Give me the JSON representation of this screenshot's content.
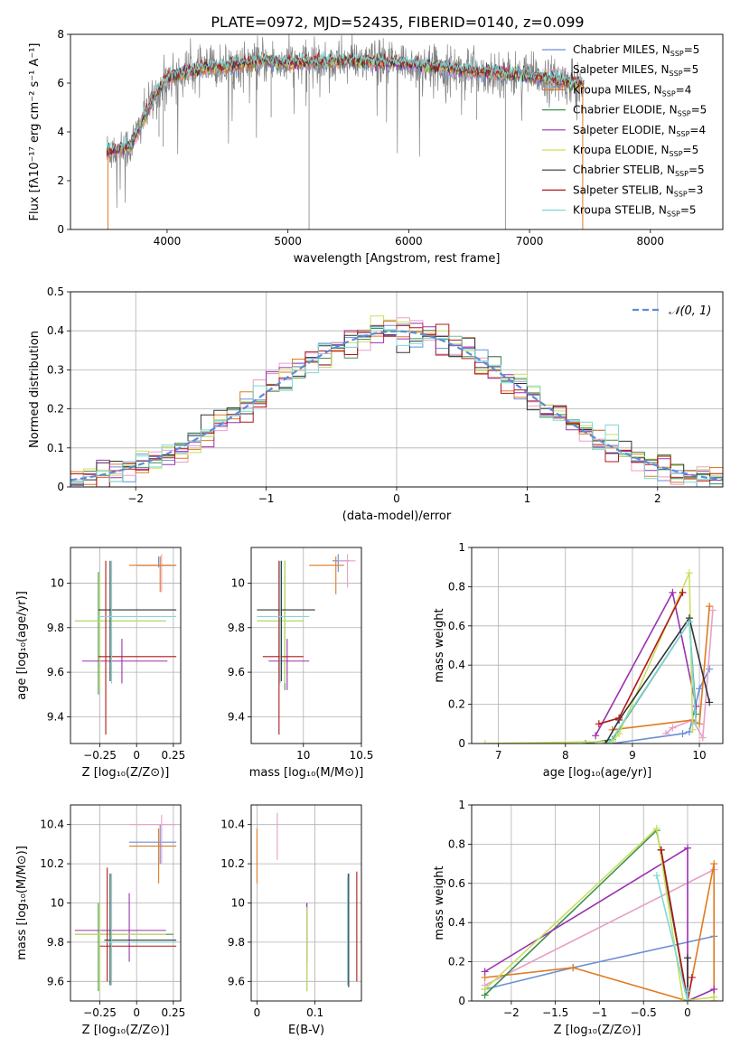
{
  "figure": {
    "title": "PLATE=0972, MJD=52435, FIBERID=0140, z=0.099"
  },
  "models": [
    {
      "label": "Chabrier MILES, N",
      "nssp": "=5",
      "color": "#6a8fd8"
    },
    {
      "label": "Salpeter MILES, N",
      "nssp": "=5",
      "color": "#e8a0c8"
    },
    {
      "label": "Kroupa MILES, N",
      "nssp": "=4",
      "color": "#e07a20"
    },
    {
      "label": "Chabrier ELODIE, N",
      "nssp": "=5",
      "color": "#3f8f4f"
    },
    {
      "label": "Salpeter ELODIE, N",
      "nssp": "=4",
      "color": "#9b30b0"
    },
    {
      "label": "Kroupa ELODIE, N",
      "nssp": "=5",
      "color": "#c8e060"
    },
    {
      "label": "Chabrier STELIB, N",
      "nssp": "=5",
      "color": "#333333"
    },
    {
      "label": "Salpeter STELIB, N",
      "nssp": "=3",
      "color": "#b01818"
    },
    {
      "label": "Kroupa STELIB, N",
      "nssp": "=5",
      "color": "#7fd8d8"
    }
  ],
  "chart_data": [
    {
      "id": "spectrum",
      "type": "line",
      "xlabel": "wavelength [Angstrom, rest frame]",
      "ylabel": "Flux [fλ10⁻¹⁷ erg cm⁻² s⁻¹ A⁻¹]",
      "xlim": [
        3200,
        8600
      ],
      "ylim": [
        0,
        8
      ],
      "xticks": [
        4000,
        5000,
        6000,
        7000,
        8000
      ],
      "yticks": [
        0,
        2,
        4,
        6,
        8
      ],
      "data_range": [
        3500,
        7450
      ],
      "continuum": {
        "x": [
          3500,
          3700,
          3800,
          3900,
          4000,
          4200,
          4500,
          4800,
          5000,
          5500,
          6000,
          6500,
          7000,
          7400
        ],
        "y": [
          3.2,
          3.4,
          4.5,
          5.5,
          6.2,
          6.5,
          6.7,
          6.9,
          6.8,
          6.9,
          6.8,
          6.5,
          6.3,
          6.0
        ]
      },
      "legend_suffix": "SSP",
      "legend_position": "upper right"
    },
    {
      "id": "residuals",
      "type": "step",
      "xlabel": "(data-model)/error",
      "ylabel": "Normed distribution",
      "xlim": [
        -2.5,
        2.5
      ],
      "ylim": [
        0,
        0.5
      ],
      "xticks": [
        -2,
        -1,
        0,
        1,
        2
      ],
      "yticks": [
        0,
        0.1,
        0.2,
        0.3,
        0.4,
        0.5
      ],
      "grid": true,
      "legend": [
        {
          "label": "𝒩(0, 1)",
          "style": "dashed",
          "color": "#5b8bd8"
        }
      ],
      "bin_width": 0.1
    },
    {
      "id": "age-vs-Z",
      "type": "errorbar",
      "xlabel": "Z [log₁₀(Z/Z⊙)]",
      "ylabel": "age  [log₁₀(age/yr)]",
      "xlim": [
        -0.45,
        0.3
      ],
      "ylim": [
        9.28,
        10.16
      ],
      "xticks": [
        -0.25,
        0.0,
        0.25
      ],
      "yticks": [
        9.4,
        9.6,
        9.8,
        10.0
      ],
      "grid": true,
      "points": [
        {
          "m": 0,
          "x": 0.15,
          "xe": [
            0.0,
            0.25
          ],
          "y": 10.08,
          "ye": [
            10.07,
            10.12
          ]
        },
        {
          "m": 1,
          "x": 0.17,
          "xe": [
            0.0,
            0.27
          ],
          "y": 10.08,
          "ye": [
            9.96,
            10.13
          ]
        },
        {
          "m": 2,
          "x": 0.16,
          "xe": [
            -0.05,
            0.27
          ],
          "y": 10.08,
          "ye": [
            9.96,
            10.12
          ]
        },
        {
          "m": 3,
          "x": -0.26,
          "xe": [
            -0.42,
            0.2
          ],
          "y": 9.83,
          "ye": [
            9.5,
            10.05
          ]
        },
        {
          "m": 4,
          "x": -0.1,
          "xe": [
            -0.37,
            0.21
          ],
          "y": 9.65,
          "ye": [
            9.55,
            9.75
          ]
        },
        {
          "m": 5,
          "x": -0.25,
          "xe": [
            -0.42,
            0.2
          ],
          "y": 9.83,
          "ye": [
            9.52,
            10.05
          ]
        },
        {
          "m": 6,
          "x": -0.18,
          "xe": [
            -0.26,
            0.27
          ],
          "y": 9.88,
          "ye": [
            9.56,
            10.1
          ]
        },
        {
          "m": 7,
          "x": -0.21,
          "xe": [
            -0.26,
            0.27
          ],
          "y": 9.67,
          "ye": [
            9.32,
            10.1
          ]
        },
        {
          "m": 8,
          "x": -0.17,
          "xe": [
            -0.26,
            0.27
          ],
          "y": 9.85,
          "ye": [
            9.55,
            10.1
          ]
        }
      ]
    },
    {
      "id": "age-vs-mass",
      "type": "errorbar",
      "xlabel": "mass [log₁₀(M/M⊙)]",
      "ylabel": "",
      "xlim": [
        9.55,
        10.5
      ],
      "ylim": [
        9.28,
        10.16
      ],
      "xticks": [
        10.0,
        10.5
      ],
      "yticks": [
        9.4,
        9.6,
        9.8,
        10.0
      ],
      "grid": true,
      "points": [
        {
          "m": 0,
          "x": 10.3,
          "xe": [
            10.25,
            10.4
          ],
          "y": 10.1,
          "ye": [
            10.05,
            10.13
          ]
        },
        {
          "m": 1,
          "x": 10.38,
          "xe": [
            10.3,
            10.45
          ],
          "y": 10.1,
          "ye": [
            9.98,
            10.13
          ]
        },
        {
          "m": 2,
          "x": 10.28,
          "xe": [
            10.05,
            10.35
          ],
          "y": 10.08,
          "ye": [
            9.95,
            10.12
          ]
        },
        {
          "m": 3,
          "x": 9.84,
          "xe": [
            9.6,
            10.0
          ],
          "y": 9.83,
          "ye": [
            9.52,
            10.1
          ]
        },
        {
          "m": 4,
          "x": 9.86,
          "xe": [
            9.7,
            10.05
          ],
          "y": 9.65,
          "ye": [
            9.52,
            9.75
          ]
        },
        {
          "m": 5,
          "x": 9.84,
          "xe": [
            9.6,
            10.0
          ],
          "y": 9.83,
          "ye": [
            9.55,
            10.1
          ]
        },
        {
          "m": 6,
          "x": 9.81,
          "xe": [
            9.6,
            10.1
          ],
          "y": 9.88,
          "ye": [
            9.56,
            10.1
          ]
        },
        {
          "m": 7,
          "x": 9.79,
          "xe": [
            9.65,
            10.0
          ],
          "y": 9.67,
          "ye": [
            9.32,
            10.1
          ]
        },
        {
          "m": 8,
          "x": 9.8,
          "xe": [
            9.6,
            10.05
          ],
          "y": 9.85,
          "ye": [
            9.55,
            10.1
          ]
        }
      ]
    },
    {
      "id": "weight-vs-age",
      "type": "line",
      "xlabel": "age  [log₁₀(age/yr)]",
      "ylabel": "mass weight",
      "xlim": [
        6.6,
        10.35
      ],
      "ylim": [
        0,
        1.0
      ],
      "xticks": [
        7,
        8,
        9,
        10
      ],
      "yticks": [
        0.0,
        0.2,
        0.4,
        0.6,
        0.8,
        1.0
      ],
      "grid": true,
      "series": [
        {
          "m": 0,
          "x": [
            8.7,
            9.75,
            9.85,
            10.0,
            10.15
          ],
          "y": [
            0.0,
            0.05,
            0.06,
            0.28,
            0.38
          ]
        },
        {
          "m": 1,
          "x": [
            9.5,
            9.6,
            9.9,
            10.05,
            10.2
          ],
          "y": [
            0.05,
            0.08,
            0.12,
            0.03,
            0.68
          ]
        },
        {
          "m": 2,
          "x": [
            8.7,
            9.9,
            10.0,
            10.15
          ],
          "y": [
            0.07,
            0.12,
            0.1,
            0.7
          ]
        },
        {
          "m": 3,
          "x": [
            8.3,
            8.7,
            9.85,
            9.95
          ],
          "y": [
            0.0,
            0.02,
            0.62,
            0.15
          ]
        },
        {
          "m": 4,
          "x": [
            8.45,
            9.6,
            9.95
          ],
          "y": [
            0.04,
            0.77,
            0.19
          ]
        },
        {
          "m": 5,
          "x": [
            6.8,
            8.7,
            8.8,
            9.85,
            9.9
          ],
          "y": [
            0.0,
            0.01,
            0.05,
            0.87,
            0.07
          ]
        },
        {
          "m": 6,
          "x": [
            8.6,
            8.8,
            9.85,
            10.15
          ],
          "y": [
            0.0,
            0.12,
            0.64,
            0.21
          ]
        },
        {
          "m": 7,
          "x": [
            8.5,
            8.8,
            9.75
          ],
          "y": [
            0.1,
            0.13,
            0.77
          ]
        },
        {
          "m": 8,
          "x": [
            8.65,
            9.85,
            9.95
          ],
          "y": [
            0.0,
            0.62,
            0.1
          ]
        }
      ]
    },
    {
      "id": "mass-vs-Z",
      "type": "errorbar",
      "xlabel": "Z [log₁₀(Z/Z⊙)]",
      "ylabel": "mass [log₁₀(M/M⊙)]",
      "xlim": [
        -0.45,
        0.3
      ],
      "ylim": [
        9.5,
        10.5
      ],
      "xticks": [
        -0.25,
        0.0,
        0.25
      ],
      "yticks": [
        9.6,
        9.8,
        10.0,
        10.2,
        10.4
      ],
      "grid": true,
      "points": [
        {
          "m": 0,
          "x": 0.16,
          "xe": [
            -0.05,
            0.27
          ],
          "y": 10.31,
          "ye": [
            10.2,
            10.4
          ]
        },
        {
          "m": 1,
          "x": 0.17,
          "xe": [
            -0.05,
            0.27
          ],
          "y": 10.4,
          "ye": [
            10.2,
            10.45
          ]
        },
        {
          "m": 2,
          "x": 0.15,
          "xe": [
            -0.05,
            0.27
          ],
          "y": 10.29,
          "ye": [
            10.1,
            10.38
          ]
        },
        {
          "m": 3,
          "x": -0.26,
          "xe": [
            -0.42,
            0.25
          ],
          "y": 9.84,
          "ye": [
            9.55,
            10.0
          ]
        },
        {
          "m": 4,
          "x": -0.05,
          "xe": [
            -0.42,
            0.2
          ],
          "y": 9.86,
          "ye": [
            9.7,
            10.05
          ]
        },
        {
          "m": 5,
          "x": -0.25,
          "xe": [
            -0.42,
            0.2
          ],
          "y": 9.84,
          "ye": [
            9.55,
            10.0
          ]
        },
        {
          "m": 6,
          "x": -0.18,
          "xe": [
            -0.22,
            0.27
          ],
          "y": 9.81,
          "ye": [
            9.58,
            10.15
          ]
        },
        {
          "m": 7,
          "x": -0.2,
          "xe": [
            -0.25,
            0.27
          ],
          "y": 9.78,
          "ye": [
            9.6,
            10.18
          ]
        },
        {
          "m": 8,
          "x": -0.17,
          "xe": [
            -0.22,
            0.27
          ],
          "y": 9.8,
          "ye": [
            9.58,
            10.15
          ]
        }
      ]
    },
    {
      "id": "mass-vs-EBV",
      "type": "errorbar",
      "xlabel": "E(B-V)",
      "ylabel": "",
      "xlim": [
        -0.01,
        0.18
      ],
      "ylim": [
        9.5,
        10.5
      ],
      "xticks": [
        0.0,
        0.1
      ],
      "yticks": [
        9.6,
        9.8,
        10.0,
        10.2,
        10.4
      ],
      "grid": true,
      "points": [
        {
          "m": 0,
          "x": 0.157,
          "ye": [
            9.58,
            10.15
          ],
          "y": 9.86
        },
        {
          "m": 1,
          "x": 0.035,
          "ye": [
            10.22,
            10.46
          ],
          "y": 10.34
        },
        {
          "m": 2,
          "x": 0.0,
          "ye": [
            10.1,
            10.38
          ],
          "y": 10.24
        },
        {
          "m": 3,
          "x": 0.086,
          "ye": [
            9.55,
            10.0
          ],
          "y": 9.78
        },
        {
          "m": 4,
          "x": 0.086,
          "ye": [
            9.7,
            10.0
          ],
          "y": 9.85
        },
        {
          "m": 5,
          "x": 0.086,
          "ye": [
            9.55,
            9.98
          ],
          "y": 9.76
        },
        {
          "m": 6,
          "x": 0.158,
          "ye": [
            9.57,
            10.15
          ],
          "y": 9.86
        },
        {
          "m": 7,
          "x": 0.172,
          "ye": [
            9.6,
            10.16
          ],
          "y": 9.88
        },
        {
          "m": 8,
          "x": 0.156,
          "ye": [
            9.58,
            10.13
          ],
          "y": 9.85
        }
      ]
    },
    {
      "id": "weight-vs-Z",
      "type": "line",
      "xlabel": "Z [log₁₀(Z/Z⊙)]",
      "ylabel": "mass weight",
      "xlim": [
        -2.45,
        0.4
      ],
      "ylim": [
        0,
        1.0
      ],
      "xticks": [
        -2.0,
        -1.5,
        -1.0,
        -0.5,
        0.0
      ],
      "yticks": [
        0.0,
        0.2,
        0.4,
        0.6,
        0.8,
        1.0
      ],
      "grid": true,
      "series": [
        {
          "m": 0,
          "x": [
            -2.3,
            -1.3,
            0.3
          ],
          "y": [
            0.06,
            0.17,
            0.33
          ]
        },
        {
          "m": 1,
          "x": [
            -2.3,
            0.3
          ],
          "y": [
            0.08,
            0.67
          ]
        },
        {
          "m": 2,
          "x": [
            -2.3,
            -1.3,
            0.0,
            0.3,
            0.3
          ],
          "y": [
            0.12,
            0.17,
            0.0,
            0.7,
            0.0
          ]
        },
        {
          "m": 3,
          "x": [
            -2.3,
            -0.35,
            0.0
          ],
          "y": [
            0.03,
            0.87,
            0.0
          ]
        },
        {
          "m": 4,
          "x": [
            -2.3,
            0.0,
            0.0,
            0.3
          ],
          "y": [
            0.15,
            0.78,
            0.0,
            0.06
          ]
        },
        {
          "m": 5,
          "x": [
            -2.3,
            -0.35,
            -0.05,
            0.3
          ],
          "y": [
            0.06,
            0.88,
            0.0,
            0.02
          ]
        },
        {
          "m": 6,
          "x": [
            -0.3,
            0.0,
            0.0
          ],
          "y": [
            0.77,
            0.0,
            0.22
          ]
        },
        {
          "m": 7,
          "x": [
            -0.3,
            0.0,
            0.05
          ],
          "y": [
            0.77,
            0.0,
            0.12
          ]
        },
        {
          "m": 8,
          "x": [
            -0.35,
            0.0,
            0.0
          ],
          "y": [
            0.64,
            0.0,
            0.05
          ]
        }
      ]
    }
  ]
}
